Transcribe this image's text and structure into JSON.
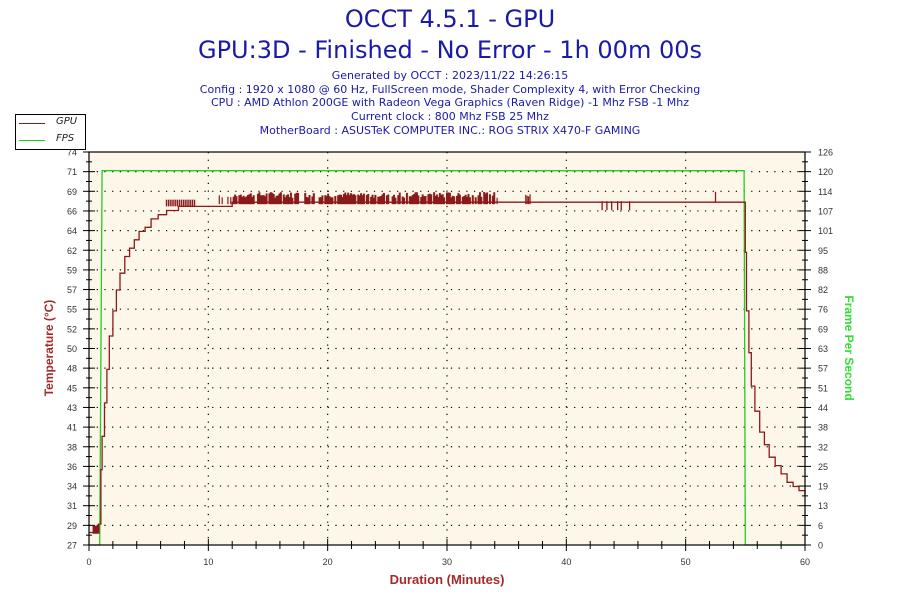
{
  "header": {
    "title": "OCCT 4.5.1 - GPU",
    "subtitle": "GPU:3D - Finished - No Error - 1h 00m 00s",
    "info_lines": [
      "Generated by OCCT : 2023/11/22 14:26:15",
      "Config : 1920 x 1080 @ 60 Hz, FullScreen mode, Shader Complexity 4, with Error Checking",
      "CPU : AMD Athlon 200GE with Radeon Vega Graphics (Raven Ridge) -1 Mhz FSB -1 Mhz",
      "Current clock : 800 Mhz FSB 25 Mhz",
      "MotherBoard : ASUSTeK COMPUTER INC.: ROG STRIX X470-F GAMING"
    ]
  },
  "legend": {
    "items": [
      {
        "label": "GPU",
        "color": "#8b1a1a"
      },
      {
        "label": "FPS",
        "color": "#22cc22"
      }
    ]
  },
  "colors": {
    "title": "#1a1aa6",
    "temp": "#8b1a1a",
    "fps": "#22cc22",
    "plot_bg": "#fdf7ea",
    "axis_title_left": "#a52a2a",
    "axis_title_right": "#33dd33"
  },
  "chart_data": {
    "type": "line",
    "title": "OCCT 4.5.1 - GPU",
    "xlabel": "Duration (Minutes)",
    "ylabel": "Temperature (°C)",
    "y2label": "Frame Per Second",
    "xlim": [
      0,
      60
    ],
    "ylim": [
      27,
      74
    ],
    "y2lim": [
      0,
      126
    ],
    "x_ticks": [
      0,
      10,
      20,
      30,
      40,
      50,
      60
    ],
    "y_ticks": [
      74,
      71,
      69,
      66,
      64,
      62,
      59,
      57,
      55,
      52,
      50,
      48,
      45,
      43,
      41,
      38,
      36,
      34,
      31,
      29,
      27
    ],
    "y2_ticks": [
      126,
      120,
      114,
      107,
      101,
      95,
      88,
      82,
      76,
      69,
      63,
      57,
      51,
      44,
      38,
      32,
      25,
      19,
      13,
      6,
      0
    ],
    "grid": true,
    "legend_position": "top-left",
    "series": [
      {
        "name": "GPU",
        "axis": "left",
        "color": "#8b1a1a",
        "x": [
          0,
          0.5,
          0.8,
          1.0,
          1.1,
          1.3,
          1.5,
          1.7,
          2.0,
          2.3,
          2.6,
          3.0,
          3.4,
          3.8,
          4.2,
          4.7,
          5.2,
          5.8,
          6.5,
          7.5,
          9.0,
          12.0,
          20.0,
          30.0,
          40.0,
          50.0,
          54.9,
          55.0,
          55.1,
          55.3,
          55.5,
          55.8,
          56.2,
          56.6,
          57.0,
          57.5,
          58.0,
          58.5,
          59.0,
          59.5,
          60.0
        ],
        "values": [
          28.5,
          28.5,
          29.5,
          36.0,
          40.0,
          44.0,
          48.0,
          52.0,
          55.0,
          57.5,
          59.5,
          61.5,
          62.5,
          63.5,
          64.5,
          65.0,
          66.0,
          66.5,
          67.0,
          67.5,
          67.5,
          68.0,
          68.0,
          68.0,
          68.0,
          68.0,
          68.0,
          62.0,
          55.0,
          50.0,
          46.0,
          43.0,
          40.5,
          39.0,
          37.5,
          36.5,
          35.5,
          34.5,
          34.0,
          33.5,
          33.0
        ]
      },
      {
        "name": "FPS",
        "axis": "right",
        "color": "#22cc22",
        "x": [
          0,
          0.9,
          1.0,
          1.1,
          54.9,
          55.0,
          60.0
        ],
        "values": [
          0,
          0,
          60,
          120,
          120,
          0,
          0
        ]
      }
    ]
  }
}
